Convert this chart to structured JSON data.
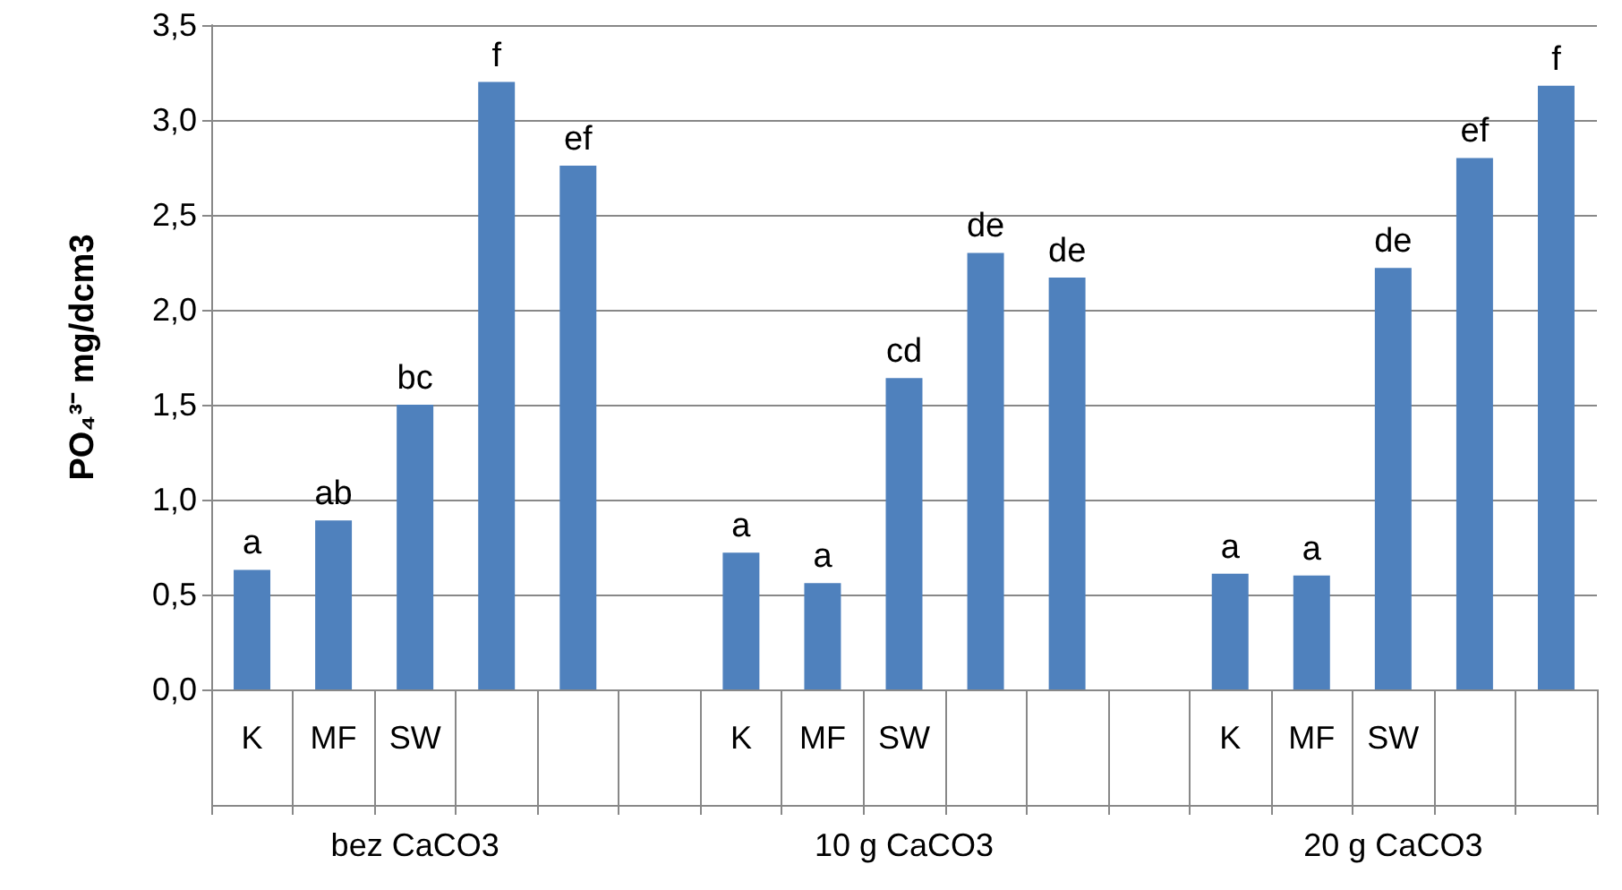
{
  "chart_data": {
    "type": "bar",
    "ylabel": "PO₄³⁻ mg/dcm3",
    "categories": [
      "K",
      "MF",
      "SW",
      null,
      null,
      null,
      "K",
      "MF",
      "SW",
      null,
      null,
      null,
      "K",
      "MF",
      "SW",
      null,
      null
    ],
    "values": [
      0.63,
      0.89,
      1.5,
      3.2,
      2.76,
      null,
      0.72,
      0.56,
      1.64,
      2.3,
      2.17,
      null,
      0.61,
      0.6,
      2.22,
      2.8,
      3.18
    ],
    "value_labels": [
      "a",
      "ab",
      "bc",
      "f",
      "ef",
      null,
      "a",
      "a",
      "cd",
      "de",
      "de",
      null,
      "a",
      "a",
      "de",
      "ef",
      "f"
    ],
    "color": "#4f81bd",
    "ylim": [
      0,
      3.5
    ],
    "yticks": [
      {
        "value": 0,
        "label": "0,0"
      },
      {
        "value": 0.5,
        "label": "0,5"
      },
      {
        "value": 1,
        "label": "1,0"
      },
      {
        "value": 1.5,
        "label": "1,5"
      },
      {
        "value": 2,
        "label": "2,0"
      },
      {
        "value": 2.5,
        "label": "2,5"
      },
      {
        "value": 3,
        "label": "3,0"
      },
      {
        "value": 3.5,
        "label": "3,5"
      }
    ],
    "grid": "y",
    "annotations": [
      "bez CaCO3",
      "10 g CaCO3",
      "20 g CaCO3"
    ]
  }
}
